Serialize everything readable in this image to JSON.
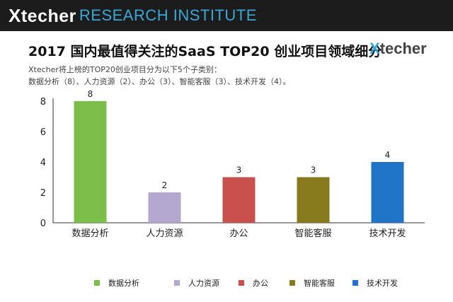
{
  "header": {
    "brand_logo": "techer",
    "brand_logo_x": "X",
    "org": "RESEARCH INSTITUTE"
  },
  "title": "2017 国内最值得关注的SaaS TOP20 创业项目领域细分",
  "right_logo": {
    "x": "X",
    "text": "techer"
  },
  "subtitle_line1": "Xtecher将上榜的TOP20创业项目分为以下5个子类别：",
  "subtitle_line2": "数据分析（8）、人力资源（2）、办公（3）、智能客服（3）、技术开发（4）。",
  "colors": {
    "topbar": "#1c1c1c",
    "org_text": "#3aa7d9"
  },
  "chart_data": {
    "type": "bar",
    "categories": [
      "数据分析",
      "人力资源",
      "办公",
      "智能客服",
      "技术开发"
    ],
    "values": [
      8,
      2,
      3,
      3,
      4
    ],
    "colors": [
      "#7dbd4a",
      "#b3a6cf",
      "#c9504c",
      "#877a1c",
      "#1f73c8"
    ],
    "ylim": [
      0,
      8
    ],
    "yticks": [
      0,
      2,
      4,
      6,
      8
    ],
    "grid": false,
    "data_labels": true,
    "legend": "bottom"
  }
}
